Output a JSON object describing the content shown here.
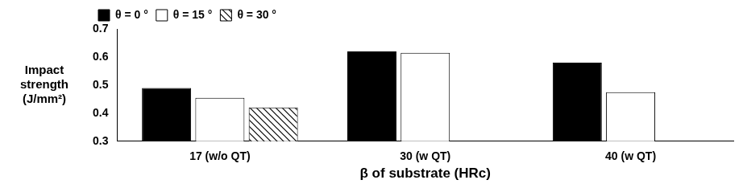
{
  "chart_data": {
    "type": "bar",
    "y_label": "Impact strength (J/mm²)",
    "x_label": "β of substrate (HRc)",
    "categories": [
      "17 (w/o QT)",
      "30 (w QT)",
      "40 (w QT)"
    ],
    "series": [
      {
        "name": "θ = 0 °",
        "color": "#000000",
        "values": [
          0.49,
          0.62,
          0.58
        ]
      },
      {
        "name": "θ = 15 °",
        "color": "#ffffff",
        "values": [
          0.455,
          0.615,
          0.475
        ]
      },
      {
        "name": "θ = 30 °",
        "color": "#000000",
        "line_style": "hatched",
        "values": [
          0.42,
          null,
          null
        ]
      }
    ],
    "ylim": [
      0.3,
      0.7
    ],
    "yticks": [
      0.3,
      0.4,
      0.5,
      0.6,
      0.7
    ],
    "grid": false,
    "legend": "top left"
  }
}
